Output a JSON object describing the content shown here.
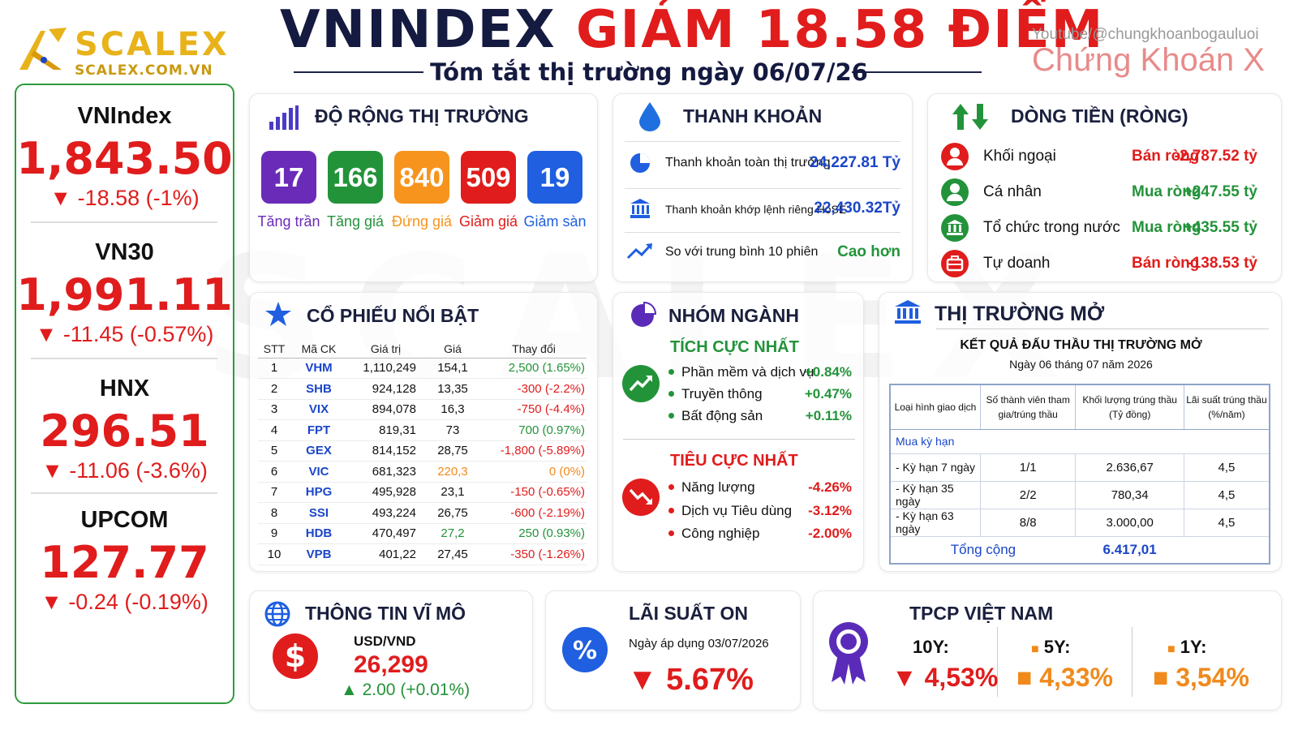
{
  "header": {
    "logo_name": "SCALEX",
    "logo_url": "SCALEX.COM.VN",
    "title_part1": "VNINDEX",
    "title_part2": "GIẢM 18.58 ĐIỂM",
    "subtitle": "Tóm tắt thị trường ngày 06/07/26",
    "youtube": "Youtube/@chungkhoanbogauluoi",
    "brand": "Chứng Khoán X",
    "watermark": "SCALEX"
  },
  "indices": [
    {
      "name": "VNIndex",
      "value": "1,843.50",
      "change": "▼ -18.58 (-1%)"
    },
    {
      "name": "VN30",
      "value": "1,991.11",
      "change": "▼ -11.45 (-0.57%)"
    },
    {
      "name": "HNX",
      "value": "296.51",
      "change": "▼ -11.06 (-3.6%)"
    },
    {
      "name": "UPCOM",
      "value": "127.77",
      "change": "▼ -0.24 (-0.19%)"
    }
  ],
  "breadth": {
    "title": "ĐỘ RỘNG THỊ TRƯỜNG",
    "items": [
      {
        "count": "17",
        "label": "Tăng trần",
        "color": "#6a2bb8"
      },
      {
        "count": "166",
        "label": "Tăng giá",
        "color": "#23933a"
      },
      {
        "count": "840",
        "label": "Đứng giá",
        "color": "#f7941d"
      },
      {
        "count": "509",
        "label": "Giảm giá",
        "color": "#e01c1c"
      },
      {
        "count": "19",
        "label": "Giảm sàn",
        "color": "#1f5fe0"
      }
    ]
  },
  "liquidity": {
    "title": "THANH KHOẢN",
    "rows": [
      {
        "label": "Thanh khoản toàn thị trường",
        "value": "24,227.81 Tỷ"
      },
      {
        "label": "Thanh khoản khớp lệnh riêng HoSE",
        "value": "22,430.32Tỷ"
      },
      {
        "label": "So với trung bình 10 phiên",
        "value": "Cao hơn"
      }
    ]
  },
  "flow": {
    "title": "DÒNG TIỀN (RÒNG)",
    "rows": [
      {
        "name": "Khối ngoại",
        "action": "Bán ròng",
        "amount": "-2,787.52 tỷ",
        "color": "#e01c1c"
      },
      {
        "name": "Cá nhân",
        "action": "Mua ròng",
        "amount": "+247.55 tỷ",
        "color": "#23933a"
      },
      {
        "name": "Tổ chức trong nước",
        "action": "Mua ròng",
        "amount": "+435.55 tỷ",
        "color": "#23933a"
      },
      {
        "name": "Tự doanh",
        "action": "Bán ròng",
        "amount": "-138.53 tỷ",
        "color": "#e01c1c"
      }
    ]
  },
  "stocks": {
    "title": "CỔ PHIẾU NỔI BẬT",
    "headers": [
      "STT",
      "Mã CK",
      "Giá trị",
      "Giá",
      "Thay đổi"
    ],
    "rows": [
      {
        "stt": "1",
        "code": "VHM",
        "value": "1,110,249",
        "price": "154,1",
        "change": "2,500 (1.65%)",
        "color": "#23933a",
        "price_color": "#111111"
      },
      {
        "stt": "2",
        "code": "SHB",
        "value": "924,128",
        "price": "13,35",
        "change": "-300 (-2.2%)",
        "color": "#e01c1c",
        "price_color": "#111111"
      },
      {
        "stt": "3",
        "code": "VIX",
        "value": "894,078",
        "price": "16,3",
        "change": "-750 (-4.4%)",
        "color": "#e01c1c",
        "price_color": "#111111"
      },
      {
        "stt": "4",
        "code": "FPT",
        "value": "819,31",
        "price": "73",
        "change": "700 (0.97%)",
        "color": "#23933a",
        "price_color": "#111111"
      },
      {
        "stt": "5",
        "code": "GEX",
        "value": "814,152",
        "price": "28,75",
        "change": "-1,800 (-5.89%)",
        "color": "#e01c1c",
        "price_color": "#111111"
      },
      {
        "stt": "6",
        "code": "VIC",
        "value": "681,323",
        "price": "220,3",
        "change": "0 (0%)",
        "color": "#f08a1c",
        "price_color": "#f08a1c"
      },
      {
        "stt": "7",
        "code": "HPG",
        "value": "495,928",
        "price": "23,1",
        "change": "-150 (-0.65%)",
        "color": "#e01c1c",
        "price_color": "#111111"
      },
      {
        "stt": "8",
        "code": "SSI",
        "value": "493,224",
        "price": "26,75",
        "change": "-600 (-2.19%)",
        "color": "#e01c1c",
        "price_color": "#111111"
      },
      {
        "stt": "9",
        "code": "HDB",
        "value": "470,497",
        "price": "27,2",
        "change": "250 (0.93%)",
        "color": "#23933a",
        "price_color": "#23933a"
      },
      {
        "stt": "10",
        "code": "VPB",
        "value": "401,22",
        "price": "27,45",
        "change": "-350 (-1.26%)",
        "color": "#e01c1c",
        "price_color": "#111111"
      }
    ]
  },
  "sectors": {
    "title": "NHÓM NGÀNH",
    "positive_title": "TÍCH CỰC NHẤT",
    "positive": [
      {
        "name": "Phần mềm và dịch vụ",
        "change": "+0.84%"
      },
      {
        "name": "Truyền thông",
        "change": "+0.47%"
      },
      {
        "name": "Bất động sản",
        "change": "+0.11%"
      }
    ],
    "negative_title": "TIÊU CỰC NHẤT",
    "negative": [
      {
        "name": "Năng lượng",
        "change": "-4.26%"
      },
      {
        "name": "Dịch vụ Tiêu dùng",
        "change": "-3.12%"
      },
      {
        "name": "Công nghiệp",
        "change": "-2.00%"
      }
    ]
  },
  "open_market": {
    "title": "THỊ TRƯỜNG MỞ",
    "result_title": "KẾT QUẢ ĐẤU THẦU THỊ TRƯỜNG MỞ",
    "date": "Ngày 06 tháng 07 năm 2026",
    "headers": [
      "Loại hình giao dịch",
      "Số thành viên tham gia/trúng thầu",
      "Khối lượng trúng thầu (Tỷ đồng)",
      "Lãi suất trúng thầu (%/năm)"
    ],
    "section": "Mua kỳ hạn",
    "rows": [
      {
        "type": "- Kỳ hạn 7 ngày",
        "members": "1/1",
        "volume": "2.636,67",
        "rate": "4,5"
      },
      {
        "type": "- Kỳ hạn 35 ngày",
        "members": "2/2",
        "volume": "780,34",
        "rate": "4,5"
      },
      {
        "type": "- Kỳ hạn 63 ngày",
        "members": "8/8",
        "volume": "3.000,00",
        "rate": "4,5"
      }
    ],
    "total_label": "Tổng cộng",
    "total_value": "6.417,01"
  },
  "macro": {
    "title": "THÔNG TIN VĨ MÔ",
    "pair": "USD/VND",
    "rate": "26,299",
    "change": "▲ 2.00 (+0.01%)"
  },
  "on_rate": {
    "title": "LÃI SUẤT ON",
    "date": "Ngày áp dụng 03/07/2026",
    "value": "▼ 5.67%"
  },
  "bonds": {
    "title": "TPCP VIỆT NAM",
    "items": [
      {
        "term": "10Y:",
        "value": "▼ 4,53%",
        "marker": "",
        "color": "#e01c1c"
      },
      {
        "term": "5Y:",
        "value": "■ 4,33%",
        "marker": "■",
        "color": "#f08a1c"
      },
      {
        "term": "1Y:",
        "value": "■ 3,54%",
        "marker": "■",
        "color": "#f08a1c"
      }
    ]
  },
  "colors": {
    "up": "#23933a",
    "down": "#e01c1c",
    "flat": "#f08a1c",
    "accent": "#1b46c8",
    "border": "#2d9b3e"
  }
}
